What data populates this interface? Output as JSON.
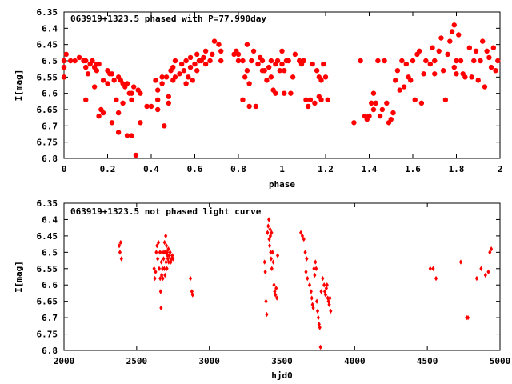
{
  "chart_data": [
    {
      "type": "scatter",
      "title": "063919+1323.5 phased with P=77.990day",
      "xlabel": "phase",
      "ylabel": "I[mag]",
      "xlim": [
        0,
        2
      ],
      "ylim": [
        6.35,
        6.8
      ],
      "y_inverted": true,
      "xticks": [
        "0",
        "0.2",
        "0.4",
        "0.6",
        "0.8",
        "1",
        "1.2",
        "1.4",
        "1.6",
        "1.8",
        "2"
      ],
      "yticks": [
        "6.35",
        "6.4",
        "6.45",
        "6.5",
        "6.55",
        "6.6",
        "6.65",
        "6.7",
        "6.75",
        "6.8"
      ],
      "marker_color": "#ff0000",
      "marker": "filled-circle",
      "points": [
        [
          0.0,
          6.5
        ],
        [
          0.0,
          6.52
        ],
        [
          0.0,
          6.55
        ],
        [
          0.01,
          6.48
        ],
        [
          0.03,
          6.5
        ],
        [
          0.05,
          6.5
        ],
        [
          0.07,
          6.49
        ],
        [
          0.09,
          6.5
        ],
        [
          0.1,
          6.5
        ],
        [
          0.1,
          6.52
        ],
        [
          0.11,
          6.54
        ],
        [
          0.1,
          6.62
        ],
        [
          0.12,
          6.51
        ],
        [
          0.13,
          6.5
        ],
        [
          0.14,
          6.52
        ],
        [
          0.14,
          6.58
        ],
        [
          0.15,
          6.53
        ],
        [
          0.15,
          6.51
        ],
        [
          0.16,
          6.67
        ],
        [
          0.16,
          6.51
        ],
        [
          0.17,
          6.65
        ],
        [
          0.18,
          6.66
        ],
        [
          0.18,
          6.56
        ],
        [
          0.2,
          6.57
        ],
        [
          0.2,
          6.53
        ],
        [
          0.21,
          6.54
        ],
        [
          0.22,
          6.54
        ],
        [
          0.22,
          6.69
        ],
        [
          0.23,
          6.56
        ],
        [
          0.24,
          6.62
        ],
        [
          0.25,
          6.55
        ],
        [
          0.25,
          6.66
        ],
        [
          0.25,
          6.72
        ],
        [
          0.26,
          6.56
        ],
        [
          0.27,
          6.57
        ],
        [
          0.27,
          6.63
        ],
        [
          0.28,
          6.58
        ],
        [
          0.29,
          6.57
        ],
        [
          0.29,
          6.73
        ],
        [
          0.3,
          6.6
        ],
        [
          0.31,
          6.73
        ],
        [
          0.31,
          6.6
        ],
        [
          0.31,
          6.62
        ],
        [
          0.32,
          6.58
        ],
        [
          0.33,
          6.79
        ],
        [
          0.34,
          6.59
        ],
        [
          0.35,
          6.6
        ],
        [
          0.35,
          6.69
        ],
        [
          0.38,
          6.64
        ],
        [
          0.4,
          6.64
        ],
        [
          0.42,
          6.56
        ],
        [
          0.43,
          6.59
        ],
        [
          0.43,
          6.62
        ],
        [
          0.43,
          6.65
        ],
        [
          0.45,
          6.57
        ],
        [
          0.45,
          6.55
        ],
        [
          0.46,
          6.7
        ],
        [
          0.47,
          6.55
        ],
        [
          0.48,
          6.61
        ],
        [
          0.48,
          6.63
        ],
        [
          0.49,
          6.53
        ],
        [
          0.5,
          6.52
        ],
        [
          0.5,
          6.56
        ],
        [
          0.51,
          6.55
        ],
        [
          0.51,
          6.5
        ],
        [
          0.53,
          6.54
        ],
        [
          0.54,
          6.51
        ],
        [
          0.55,
          6.53
        ],
        [
          0.56,
          6.5
        ],
        [
          0.56,
          6.57
        ],
        [
          0.57,
          6.55
        ],
        [
          0.58,
          6.49
        ],
        [
          0.58,
          6.52
        ],
        [
          0.59,
          6.56
        ],
        [
          0.6,
          6.51
        ],
        [
          0.61,
          6.48
        ],
        [
          0.61,
          6.53
        ],
        [
          0.62,
          6.5
        ],
        [
          0.63,
          6.5
        ],
        [
          0.64,
          6.49
        ],
        [
          0.65,
          6.47
        ],
        [
          0.65,
          6.51
        ],
        [
          0.67,
          6.5
        ],
        [
          0.68,
          6.48
        ],
        [
          0.69,
          6.44
        ],
        [
          0.71,
          6.45
        ],
        [
          0.72,
          6.47
        ],
        [
          0.72,
          6.5
        ],
        [
          0.78,
          6.48
        ],
        [
          0.79,
          6.47
        ],
        [
          0.8,
          6.5
        ],
        [
          0.8,
          6.48
        ],
        [
          0.82,
          6.5
        ],
        [
          0.82,
          6.62
        ],
        [
          0.83,
          6.55
        ],
        [
          0.84,
          6.45
        ],
        [
          0.84,
          6.53
        ],
        [
          0.85,
          6.64
        ],
        [
          0.85,
          6.57
        ],
        [
          0.86,
          6.5
        ],
        [
          0.87,
          6.47
        ],
        [
          0.88,
          6.64
        ],
        [
          0.89,
          6.51
        ],
        [
          0.9,
          6.49
        ],
        [
          0.91,
          6.5
        ],
        [
          0.91,
          6.53
        ],
        [
          0.92,
          6.53
        ],
        [
          0.93,
          6.56
        ],
        [
          0.94,
          6.52
        ],
        [
          0.95,
          6.5
        ],
        [
          0.95,
          6.55
        ],
        [
          0.96,
          6.59
        ],
        [
          0.97,
          6.51
        ],
        [
          0.97,
          6.6
        ],
        [
          0.98,
          6.5
        ],
        [
          0.99,
          6.53
        ],
        [
          1.0,
          6.51
        ],
        [
          1.0,
          6.47
        ],
        [
          1.01,
          6.6
        ],
        [
          1.01,
          6.53
        ],
        [
          1.02,
          6.5
        ],
        [
          1.03,
          6.5
        ],
        [
          1.04,
          6.6
        ],
        [
          1.05,
          6.55
        ],
        [
          1.06,
          6.48
        ],
        [
          1.08,
          6.5
        ],
        [
          1.08,
          6.5
        ],
        [
          1.09,
          6.51
        ],
        [
          1.1,
          6.5
        ],
        [
          1.11,
          6.62
        ],
        [
          1.12,
          6.64
        ],
        [
          1.13,
          6.62
        ],
        [
          1.14,
          6.51
        ],
        [
          1.15,
          6.63
        ],
        [
          1.16,
          6.53
        ],
        [
          1.17,
          6.61
        ],
        [
          1.17,
          6.55
        ],
        [
          1.18,
          6.62
        ],
        [
          1.18,
          6.56
        ],
        [
          1.19,
          6.51
        ],
        [
          1.2,
          6.55
        ],
        [
          1.21,
          6.62
        ],
        [
          1.33,
          6.69
        ],
        [
          1.36,
          6.5
        ],
        [
          1.38,
          6.67
        ],
        [
          1.39,
          6.68
        ],
        [
          1.4,
          6.67
        ],
        [
          1.41,
          6.63
        ],
        [
          1.42,
          6.65
        ],
        [
          1.42,
          6.6
        ],
        [
          1.43,
          6.63
        ],
        [
          1.44,
          6.5
        ],
        [
          1.45,
          6.67
        ],
        [
          1.46,
          6.65
        ],
        [
          1.47,
          6.5
        ],
        [
          1.48,
          6.63
        ],
        [
          1.49,
          6.69
        ],
        [
          1.5,
          6.68
        ],
        [
          1.51,
          6.66
        ],
        [
          1.52,
          6.56
        ],
        [
          1.53,
          6.53
        ],
        [
          1.54,
          6.59
        ],
        [
          1.55,
          6.5
        ],
        [
          1.56,
          6.58
        ],
        [
          1.57,
          6.51
        ],
        [
          1.58,
          6.55
        ],
        [
          1.59,
          6.56
        ],
        [
          1.6,
          6.5
        ],
        [
          1.61,
          6.62
        ],
        [
          1.62,
          6.48
        ],
        [
          1.63,
          6.47
        ],
        [
          1.64,
          6.63
        ],
        [
          1.65,
          6.54
        ],
        [
          1.66,
          6.5
        ],
        [
          1.68,
          6.51
        ],
        [
          1.69,
          6.46
        ],
        [
          1.7,
          6.54
        ],
        [
          1.7,
          6.5
        ],
        [
          1.72,
          6.47
        ],
        [
          1.73,
          6.43
        ],
        [
          1.74,
          6.53
        ],
        [
          1.75,
          6.62
        ],
        [
          1.76,
          6.48
        ],
        [
          1.77,
          6.44
        ],
        [
          1.78,
          6.41
        ],
        [
          1.79,
          6.39
        ],
        [
          1.79,
          6.52
        ],
        [
          1.8,
          6.54
        ],
        [
          1.8,
          6.5
        ],
        [
          1.81,
          6.42
        ],
        [
          1.82,
          6.5
        ],
        [
          1.83,
          6.54
        ],
        [
          1.84,
          6.55
        ],
        [
          1.86,
          6.46
        ],
        [
          1.87,
          6.55
        ],
        [
          1.88,
          6.5
        ],
        [
          1.89,
          6.47
        ],
        [
          1.9,
          6.56
        ],
        [
          1.91,
          6.5
        ],
        [
          1.92,
          6.44
        ],
        [
          1.93,
          6.58
        ],
        [
          1.94,
          6.47
        ],
        [
          1.95,
          6.49
        ],
        [
          1.96,
          6.52
        ],
        [
          1.97,
          6.46
        ],
        [
          1.98,
          6.53
        ],
        [
          1.99,
          6.5
        ]
      ]
    },
    {
      "type": "scatter",
      "title": "063919+1323.5 not phased light curve",
      "xlabel": "hjd0",
      "ylabel": "I[mag]",
      "xlim": [
        2000,
        5000
      ],
      "ylim": [
        6.35,
        6.8
      ],
      "y_inverted": true,
      "xticks": [
        "2000",
        "2500",
        "3000",
        "3500",
        "4000",
        "4500",
        "5000"
      ],
      "yticks": [
        "6.35",
        "6.4",
        "6.45",
        "6.5",
        "6.55",
        "6.6",
        "6.65",
        "6.7",
        "6.75",
        "6.8"
      ],
      "marker_color": "#ff0000",
      "marker": "filled-diamond",
      "points": [
        [
          2380,
          6.48
        ],
        [
          2385,
          6.5
        ],
        [
          2390,
          6.47
        ],
        [
          2395,
          6.52
        ],
        [
          2620,
          6.55
        ],
        [
          2625,
          6.58
        ],
        [
          2630,
          6.56
        ],
        [
          2635,
          6.5
        ],
        [
          2640,
          6.48
        ],
        [
          2645,
          6.52
        ],
        [
          2650,
          6.47
        ],
        [
          2655,
          6.55
        ],
        [
          2660,
          6.5
        ],
        [
          2662,
          6.58
        ],
        [
          2665,
          6.62
        ],
        [
          2668,
          6.67
        ],
        [
          2670,
          6.53
        ],
        [
          2672,
          6.57
        ],
        [
          2675,
          6.5
        ],
        [
          2678,
          6.55
        ],
        [
          2680,
          6.58
        ],
        [
          2685,
          6.52
        ],
        [
          2688,
          6.5
        ],
        [
          2690,
          6.55
        ],
        [
          2692,
          6.47
        ],
        [
          2695,
          6.57
        ],
        [
          2698,
          6.5
        ],
        [
          2700,
          6.45
        ],
        [
          2702,
          6.53
        ],
        [
          2705,
          6.48
        ],
        [
          2708,
          6.55
        ],
        [
          2710,
          6.5
        ],
        [
          2712,
          6.51
        ],
        [
          2715,
          6.52
        ],
        [
          2718,
          6.49
        ],
        [
          2720,
          6.53
        ],
        [
          2725,
          6.51
        ],
        [
          2730,
          6.5
        ],
        [
          2735,
          6.53
        ],
        [
          2740,
          6.52
        ],
        [
          2745,
          6.51
        ],
        [
          2750,
          6.52
        ],
        [
          2870,
          6.58
        ],
        [
          2880,
          6.62
        ],
        [
          2885,
          6.63
        ],
        [
          3380,
          6.53
        ],
        [
          3385,
          6.56
        ],
        [
          3390,
          6.65
        ],
        [
          3395,
          6.69
        ],
        [
          3400,
          6.44
        ],
        [
          3405,
          6.42
        ],
        [
          3410,
          6.4
        ],
        [
          3412,
          6.46
        ],
        [
          3415,
          6.48
        ],
        [
          3418,
          6.43
        ],
        [
          3420,
          6.45
        ],
        [
          3422,
          6.5
        ],
        [
          3425,
          6.52
        ],
        [
          3428,
          6.44
        ],
        [
          3430,
          6.55
        ],
        [
          3435,
          6.5
        ],
        [
          3440,
          6.53
        ],
        [
          3445,
          6.6
        ],
        [
          3450,
          6.62
        ],
        [
          3455,
          6.63
        ],
        [
          3460,
          6.61
        ],
        [
          3465,
          6.64
        ],
        [
          3470,
          6.51
        ],
        [
          3630,
          6.44
        ],
        [
          3640,
          6.45
        ],
        [
          3650,
          6.46
        ],
        [
          3660,
          6.5
        ],
        [
          3665,
          6.56
        ],
        [
          3670,
          6.52
        ],
        [
          3675,
          6.58
        ],
        [
          3690,
          6.6
        ],
        [
          3700,
          6.62
        ],
        [
          3705,
          6.64
        ],
        [
          3710,
          6.66
        ],
        [
          3715,
          6.67
        ],
        [
          3720,
          6.55
        ],
        [
          3725,
          6.57
        ],
        [
          3730,
          6.53
        ],
        [
          3735,
          6.55
        ],
        [
          3740,
          6.65
        ],
        [
          3745,
          6.68
        ],
        [
          3750,
          6.7
        ],
        [
          3755,
          6.72
        ],
        [
          3760,
          6.73
        ],
        [
          3765,
          6.79
        ],
        [
          3770,
          6.62
        ],
        [
          3780,
          6.58
        ],
        [
          3790,
          6.6
        ],
        [
          3795,
          6.62
        ],
        [
          3800,
          6.63
        ],
        [
          3805,
          6.61
        ],
        [
          3810,
          6.6
        ],
        [
          3815,
          6.64
        ],
        [
          3820,
          6.65
        ],
        [
          3825,
          6.66
        ],
        [
          3830,
          6.64
        ],
        [
          3835,
          6.68
        ],
        [
          4520,
          6.55
        ],
        [
          4540,
          6.55
        ],
        [
          4560,
          6.58
        ],
        [
          4730,
          6.53
        ],
        [
          4770,
          6.7
        ],
        [
          4780,
          6.7
        ],
        [
          4840,
          6.58
        ],
        [
          4870,
          6.55
        ],
        [
          4900,
          6.57
        ],
        [
          4920,
          6.56
        ],
        [
          4930,
          6.5
        ],
        [
          4940,
          6.49
        ]
      ]
    }
  ]
}
